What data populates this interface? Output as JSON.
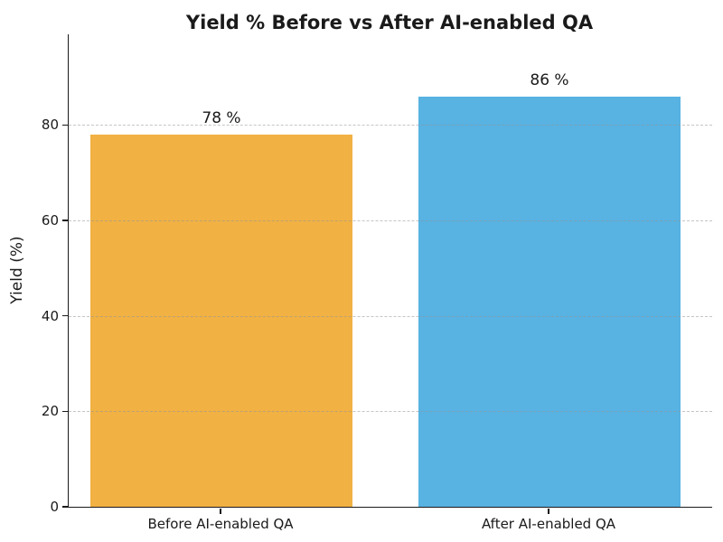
{
  "chart_data": {
    "type": "bar",
    "title": "Yield % Before vs After AI-enabled QA",
    "xlabel": "",
    "ylabel": "Yield (%)",
    "categories": [
      "Before AI-enabled QA",
      "After AI-enabled QA"
    ],
    "values": [
      78,
      86
    ],
    "bar_value_labels": [
      "78 %",
      "86 %"
    ],
    "bar_colors": [
      "#F1B143",
      "#58B2E2"
    ],
    "yticks": [
      0,
      20,
      40,
      60,
      80
    ],
    "ylim": [
      0,
      99
    ],
    "grid": "horizontal-dashed",
    "legend": "none",
    "axis_color": "#1a1a1a",
    "grid_color": "#969696",
    "text_color": "#1a1a1a"
  }
}
